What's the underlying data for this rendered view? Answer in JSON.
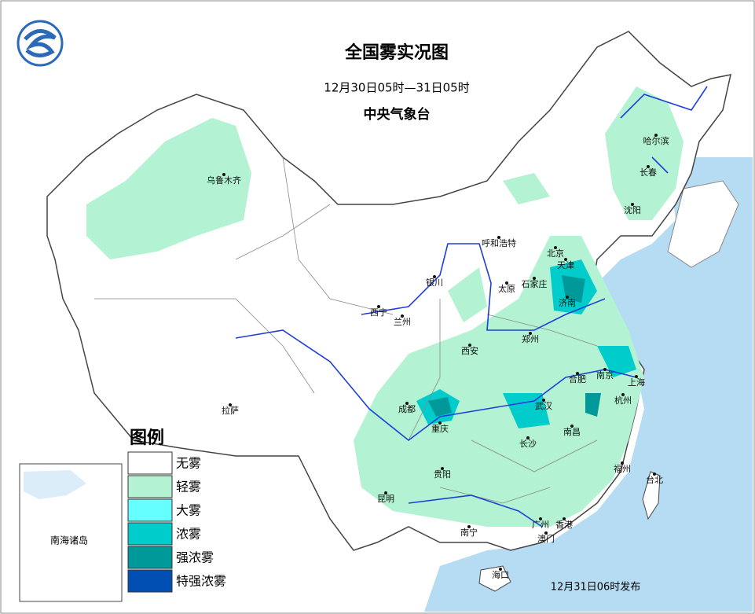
{
  "header": {
    "title": "全国雾实况图",
    "subtitle": "12月30日05时—31日05时",
    "issuer": "中央气象台"
  },
  "cities": [
    "乌鲁木齐",
    "哈尔滨",
    "长春",
    "沈阳",
    "呼和浩特",
    "北京",
    "天津",
    "石家庄",
    "太原",
    "济南",
    "银川",
    "西宁",
    "兰州",
    "西安",
    "郑州",
    "合肥",
    "南京",
    "上海",
    "杭州",
    "武汉",
    "成都",
    "重庆",
    "拉萨",
    "长沙",
    "南昌",
    "贵阳",
    "福州",
    "台北",
    "昆明",
    "南宁",
    "广州",
    "香港",
    "澳门",
    "海口"
  ],
  "inset": {
    "label": "南海诸岛"
  },
  "legend": {
    "title": "图例",
    "items": [
      {
        "label": "无雾",
        "color": "#ffffff"
      },
      {
        "label": "轻雾",
        "color": "#b3f2d2"
      },
      {
        "label": "大雾",
        "color": "#66ffff"
      },
      {
        "label": "浓雾",
        "color": "#00cccc"
      },
      {
        "label": "强浓雾",
        "color": "#009999"
      },
      {
        "label": "特强浓雾",
        "color": "#0050b4"
      }
    ]
  },
  "footer": {
    "issued": "12月31日06时发布"
  }
}
